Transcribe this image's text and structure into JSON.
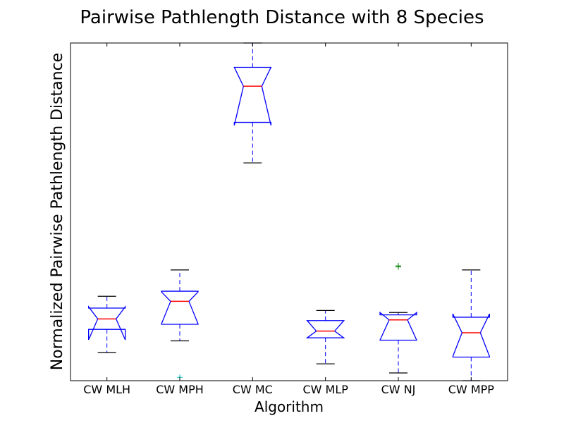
{
  "chart_data": {
    "type": "boxplot",
    "title": "Pairwise Pathlength Distance with 8 Species",
    "xlabel": "Algorithm",
    "ylabel": "Normalized Pairwise Pathlength Distance",
    "ylim": [
      0,
      100
    ],
    "y_ticks_visible": false,
    "notched": true,
    "grid": false,
    "categories": [
      "CW MLH",
      "CW MPH",
      "CW MC",
      "CW MLP",
      "CW NJ",
      "CW MPP"
    ],
    "boxes": [
      {
        "label": "CW MLH",
        "whisker_low": 8.3,
        "q1": 15.2,
        "median": 18.3,
        "q3": 21.5,
        "whisker_high": 25.0,
        "notch_low": 12.1,
        "notch_high": 21.9,
        "fliers": []
      },
      {
        "label": "CW MPH",
        "whisker_low": 11.8,
        "q1": 16.7,
        "median": 23.5,
        "q3": 26.5,
        "whisker_high": 32.8,
        "notch_low": 16.8,
        "notch_high": 26.3,
        "fliers": [
          1.0
        ]
      },
      {
        "label": "CW MC",
        "whisker_low": 64.5,
        "q1": 76.5,
        "median": 87.2,
        "q3": 92.8,
        "whisker_high": 100.0,
        "notch_low": 75.6,
        "notch_high": 92.8,
        "fliers": []
      },
      {
        "label": "CW MLP",
        "whisker_low": 5.0,
        "q1": 12.7,
        "median": 14.7,
        "q3": 17.8,
        "whisker_high": 20.8,
        "notch_low": 12.7,
        "notch_high": 17.8,
        "fliers": []
      },
      {
        "label": "CW NJ",
        "whisker_low": 2.3,
        "q1": 12.0,
        "median": 18.0,
        "q3": 19.5,
        "whisker_high": 20.2,
        "notch_low": 12.0,
        "notch_high": 20.2,
        "fliers": [
          33.7,
          34.0
        ]
      },
      {
        "label": "CW MPP",
        "whisker_low": 0.0,
        "q1": 7.0,
        "median": 14.2,
        "q3": 18.8,
        "whisker_high": 32.8,
        "notch_low": 7.2,
        "notch_high": 19.8,
        "fliers": []
      }
    ],
    "colors": {
      "box": "#0000ff",
      "median": "#ff0000",
      "whisker": "#0000ff",
      "cap": "#000000",
      "flier_cyan": "#00bfbf",
      "flier_green": "#008000"
    }
  }
}
